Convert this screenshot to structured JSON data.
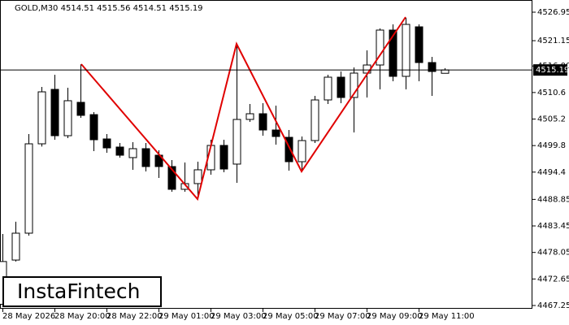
{
  "chart_data": {
    "type": "candlestick",
    "title": "GOLD,M30  4514.51 4515.56 4514.51 4515.19",
    "categories": [
      "28 May 2026",
      null,
      null,
      null,
      "28 May 20:00",
      null,
      null,
      null,
      "28 May 22:00",
      null,
      null,
      null,
      "29 May 01:00",
      null,
      null,
      null,
      "29 May 03:00",
      null,
      null,
      null,
      "29 May 05:00",
      null,
      null,
      null,
      "29 May 07:00",
      null,
      null,
      null,
      "29 May 09:00",
      null,
      null,
      null,
      "29 May 11:00",
      null,
      null
    ],
    "open": [
      4467.5,
      4476.5,
      4481.97,
      4500.16,
      4511.24,
      4501.81,
      4508.6,
      4506.1,
      4501.15,
      4499.5,
      4497.35,
      4499.17,
      4497.84,
      4495.53,
      4490.9,
      4492.06,
      4494.87,
      4499.83,
      4496.03,
      4505.12,
      4506.28,
      4502.97,
      4501.48,
      4496.52,
      4500.82,
      4509.09,
      4513.72,
      4509.59,
      4514.55,
      4516.2,
      4523.31,
      4513.89,
      4523.97,
      4516.7,
      4514.51
    ],
    "high": [
      4481.8,
      4484.3,
      4502.15,
      4511.74,
      4514.22,
      4511.57,
      4516.37,
      4506.6,
      4502.15,
      4500.33,
      4500.5,
      4500.33,
      4498.84,
      4496.85,
      4496.35,
      4496.52,
      4500.99,
      4500.99,
      4520.33,
      4508.26,
      4508.43,
      4507.93,
      4502.97,
      4501.65,
      4509.92,
      4514.22,
      4514.88,
      4515.71,
      4519.18,
      4523.64,
      4524.47,
      4525.79,
      4524.47,
      4517.86,
      4515.56
    ],
    "low": [
      4467.3,
      4476.2,
      4481.47,
      4499.6,
      4500.99,
      4501.32,
      4505.45,
      4498.67,
      4498.34,
      4497.35,
      4494.87,
      4494.54,
      4493.21,
      4490.4,
      4490.4,
      4488.91,
      4493.88,
      4494.37,
      4492.22,
      4504.63,
      4501.81,
      4499.99,
      4494.7,
      4494.7,
      4500.33,
      4508.26,
      4508.43,
      4502.47,
      4509.59,
      4511.24,
      4512.89,
      4511.24,
      4512.89,
      4509.92,
      4514.51
    ],
    "close": [
      4476.2,
      4481.97,
      4500.16,
      4510.74,
      4501.81,
      4508.93,
      4505.95,
      4500.99,
      4499.33,
      4497.84,
      4499.17,
      4495.53,
      4495.53,
      4490.9,
      4492.06,
      4494.87,
      4499.83,
      4495.03,
      4505.12,
      4506.28,
      4502.97,
      4501.65,
      4496.52,
      4500.82,
      4509.09,
      4513.72,
      4509.59,
      4514.55,
      4516.2,
      4523.31,
      4513.89,
      4524.47,
      4516.7,
      4514.88,
      4515.19
    ],
    "up_color": "#ffffff",
    "down_color": "#000000",
    "current_price": 4515.19,
    "ylim": [
      4467.25,
      4526.95
    ],
    "yticks": [
      4526.95,
      4521.15,
      {
        "value": 4516.0,
        "label": "4516.00"
      },
      4510.6,
      4505.2,
      4499.8,
      4494.4,
      4488.85,
      4483.45,
      4478.05,
      4472.65,
      4467.25
    ]
  },
  "logo": "InstaFintech"
}
